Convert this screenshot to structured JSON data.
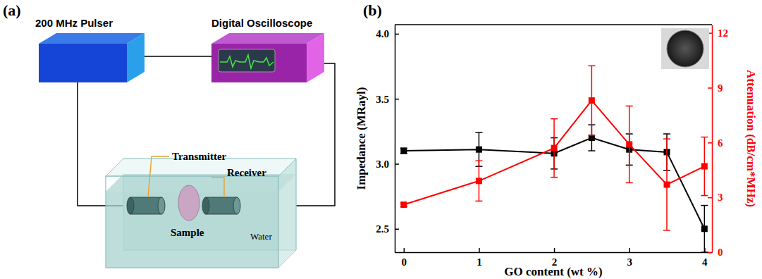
{
  "diagram": {
    "panel_label": "(a)",
    "pulser": "200 MHz Pulser",
    "oscilloscope": "Digital Oscilloscope",
    "transmitter": "Transmitter",
    "receiver": "Receiver",
    "sample": "Sample",
    "medium": "Water"
  },
  "chart_data": {
    "panel_label": "(b)",
    "type": "line",
    "xlabel": "GO content (wt %)",
    "ylabel": "Impedance (MRayl)",
    "y2label": "Attenuation (dB/cm*MHz)",
    "x": [
      0,
      1,
      2,
      2.5,
      3,
      3.5,
      4
    ],
    "xlim": [
      -0.12,
      4.1
    ],
    "xticks": [
      0,
      1,
      2,
      3,
      4
    ],
    "ylim": [
      2.32,
      4.07
    ],
    "yticks": [
      2.5,
      {
        "value": 3,
        "label": "3.0"
      },
      3.5,
      {
        "value": 4,
        "label": "4.0"
      }
    ],
    "y2lim": [
      0,
      12.45
    ],
    "y2ticks": [
      0,
      3,
      6,
      9,
      12
    ],
    "series": [
      {
        "color": "#000000",
        "marker": "square",
        "values": [
          3.1,
          3.11,
          3.08,
          3.2,
          3.11,
          3.09,
          2.5
        ],
        "errors": [
          0.02,
          0.13,
          0.12,
          0.1,
          0.12,
          0.14,
          0.18
        ]
      },
      {
        "color": "#ff0000",
        "marker": "square",
        "axis": "y2",
        "values": [
          2.6,
          3.9,
          5.7,
          8.3,
          5.9,
          3.7,
          4.7
        ],
        "errors": [
          0.1,
          1.1,
          1.6,
          1.9,
          2.1,
          2.5,
          1.6
        ]
      }
    ]
  }
}
